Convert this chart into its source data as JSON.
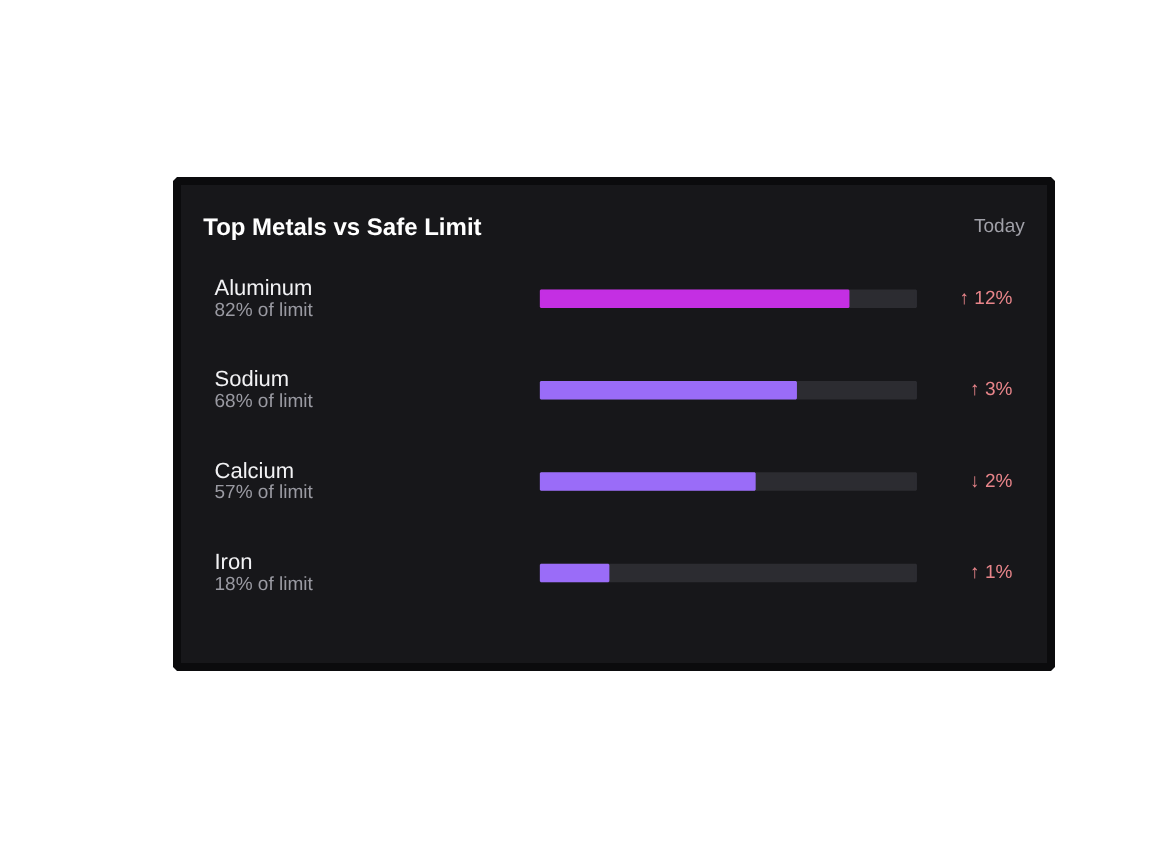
{
  "chart_data": {
    "type": "bar",
    "orientation": "horizontal",
    "title": "Top Metals vs Safe Limit",
    "subtitle": "Today",
    "categories": [
      "Aluminum",
      "Sodium",
      "Calcium",
      "Iron"
    ],
    "values": [
      82,
      68,
      57,
      18
    ],
    "colors": [
      "#c42fe3",
      "#9a6cf8",
      "#9a6cf8",
      "#9a6cf8"
    ],
    "value_labels": [
      "82% of limit",
      "68% of limit",
      "57% of limit",
      "18% of limit"
    ],
    "annotations": [
      "↑ 12%",
      "↑ 3%",
      "↓ 2%",
      "↑ 1%"
    ],
    "xlim": [
      0,
      100
    ],
    "tick_labels": "y"
  }
}
